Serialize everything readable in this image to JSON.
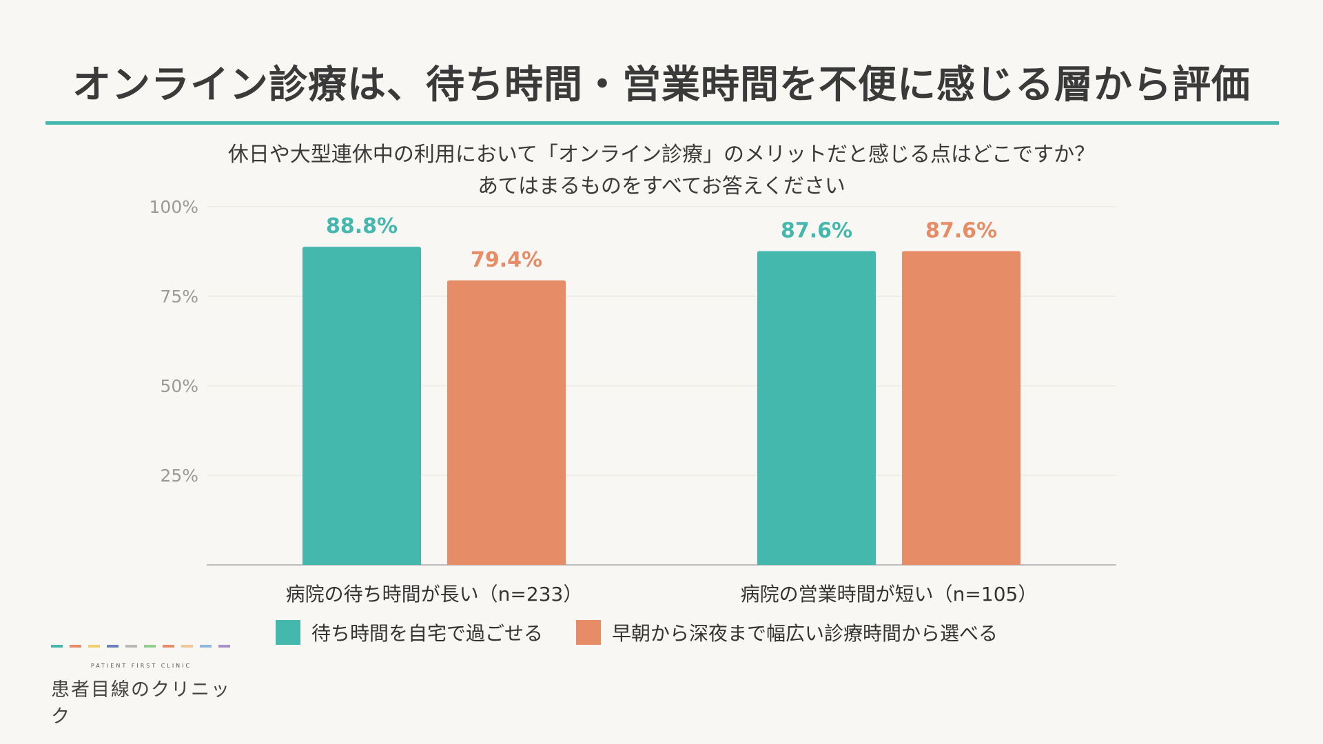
{
  "title": "オンライン診療は、待ち時間・営業時間を不便に感じる層から評価",
  "question": {
    "line1": "休日や大型連休中の利用において「オンライン診療」のメリットだと感じる点はどこですか？",
    "line2": "あてはまるものをすべてお答えください"
  },
  "chart_data": {
    "type": "bar",
    "categories": [
      "病院の待ち時間が長い（n=233）",
      "病院の営業時間が短い（n=105）"
    ],
    "series": [
      {
        "name": "待ち時間を自宅で過ごせる",
        "values": [
          88.8,
          87.6
        ],
        "labels": [
          "88.8%",
          "87.6%"
        ],
        "color": "#45b8ae"
      },
      {
        "name": "早朝から深夜まで幅広い診療時間から選べる",
        "values": [
          79.4,
          87.6
        ],
        "labels": [
          "79.4%",
          "87.6%"
        ],
        "color": "#e68c66"
      }
    ],
    "ylim": [
      0,
      100
    ],
    "yticks": [
      {
        "value": 25,
        "label": "25%"
      },
      {
        "value": 50,
        "label": "50%"
      },
      {
        "value": 75,
        "label": "75%"
      },
      {
        "value": 100,
        "label": "100%"
      }
    ],
    "grid": true,
    "legend_position": "bottom"
  },
  "logo": {
    "subtitle": "PATIENT FIRST CLINIC",
    "name": "患者目線のクリニック",
    "dash_colors": [
      "#45b8ae",
      "#e68c66",
      "#f2cf6b",
      "#6b80b8",
      "#b8b8b8",
      "#8fcf8f",
      "#e68c66",
      "#f2c49a",
      "#8fb8e0",
      "#a98fc8"
    ]
  }
}
